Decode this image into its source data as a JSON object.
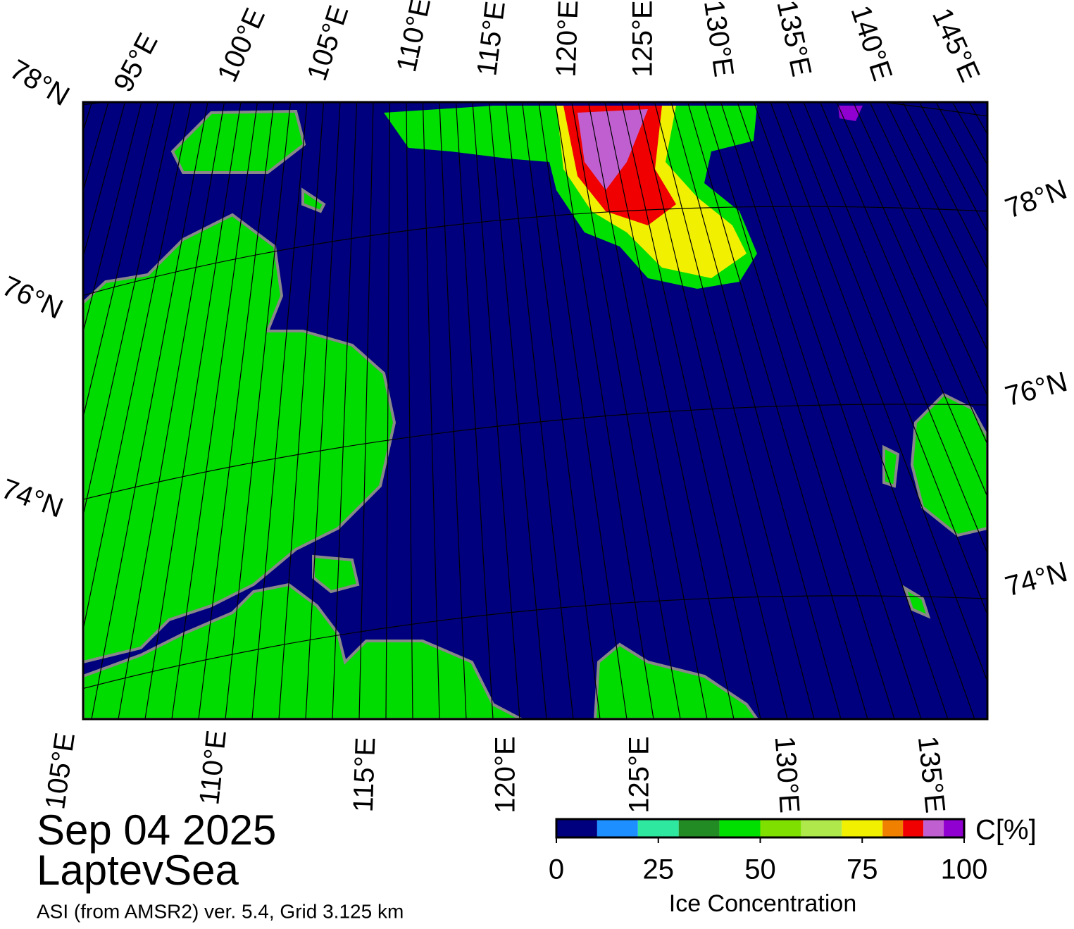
{
  "map": {
    "top_labels": [
      "95°E",
      "100°E",
      "105°E",
      "110°E",
      "115°E",
      "120°E",
      "125°E",
      "130°E",
      "135°E",
      "140°E",
      "145°E"
    ],
    "left_labels": [
      "78°N",
      "76°N",
      "74°N"
    ],
    "right_labels": [
      "78°N",
      "76°N",
      "74°N"
    ],
    "bottom_labels": [
      "105°E",
      "110°E",
      "115°E",
      "120°E",
      "125°E",
      "130°E",
      "135°E"
    ]
  },
  "date": "Sep 04 2025",
  "region": "LaptevSea",
  "source": "ASI (from AMSR2) ver. 5.4,  Grid 3.125 km",
  "colorbar": {
    "unit": "C[%]",
    "title": "Ice Concentration",
    "lim": [
      0,
      100
    ],
    "ticks": [
      0,
      25,
      50,
      75,
      100
    ],
    "bounds": [
      0,
      10,
      20,
      30,
      40,
      50,
      60,
      70,
      80,
      85,
      90,
      95,
      100
    ],
    "colors": [
      "#00007e",
      "#1e8fff",
      "#2ee8a0",
      "#238b23",
      "#00e000",
      "#7fe000",
      "#aee84a",
      "#f0f000",
      "#f08000",
      "#f00000",
      "#c060d0",
      "#9000d0"
    ]
  }
}
